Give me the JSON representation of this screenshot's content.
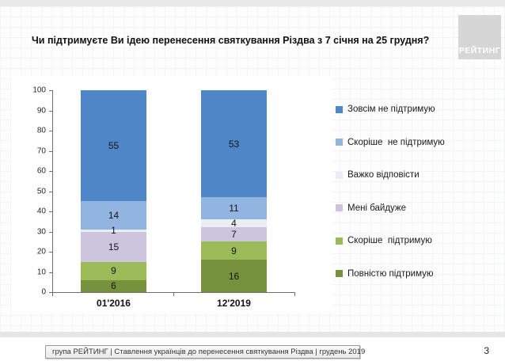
{
  "header": {
    "title": "Чи підтримуєте Ви ідею перенесення святкування Різдва з 7 січня на 25 грудня?",
    "logo_text": "РЕЙТИНГ"
  },
  "chart_data": {
    "type": "bar",
    "stacked": true,
    "title": "Чи підтримуєте Ви ідею перенесення святкування Різдва з 7 січня на 25 грудня?",
    "categories": [
      "01'2016",
      "12'2019"
    ],
    "series": [
      {
        "name": "Повністю підтримую",
        "color": "#76923c",
        "values": [
          6,
          16
        ]
      },
      {
        "name": "Скоріше  підтримую",
        "color": "#9bbb59",
        "values": [
          9,
          9
        ]
      },
      {
        "name": "Мені байдуже",
        "color": "#cdc4dd",
        "values": [
          15,
          7
        ]
      },
      {
        "name": "Важко відповісти",
        "color": "#e9eef5",
        "values": [
          1,
          4
        ]
      },
      {
        "name": "Скоріше  не підтримую",
        "color": "#92b4e0",
        "values": [
          14,
          11
        ]
      },
      {
        "name": "Зовсім не підтримую",
        "color": "#4e86c8",
        "values": [
          55,
          53
        ]
      }
    ],
    "legend_order_top_to_bottom": [
      "Зовсім не підтримую",
      "Скоріше  не підтримую",
      "Важко відповісти",
      "Мені байдуже",
      "Скоріше  підтримую",
      "Повністю підтримую"
    ],
    "xlabel": "",
    "ylabel": "",
    "ylim": [
      0,
      100
    ],
    "yticks": [
      0,
      10,
      20,
      30,
      40,
      50,
      60,
      70,
      80,
      90,
      100
    ],
    "legend_position": "right",
    "grid": false
  },
  "footer": {
    "source_line": "група РЕЙТИНГ | Ставлення українців до перенесення святкування Різдва  | грудень 2019",
    "page_number": "3"
  }
}
